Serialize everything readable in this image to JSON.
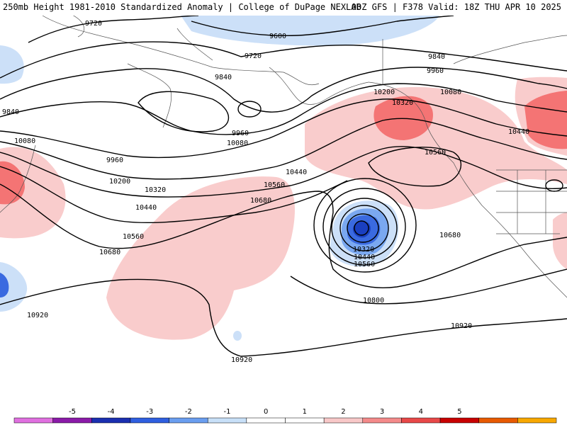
{
  "header": {
    "left": "250mb Height 1981-2010 Standardized Anomaly | College of DuPage NEXLAB",
    "right": "00Z GFS | F378 Valid: 18Z THU APR 10 2025"
  },
  "contours": [
    {
      "value": "9720",
      "label": "9720"
    },
    {
      "value": "9600",
      "label": "9600"
    },
    {
      "value": "9720b",
      "label": "9720"
    },
    {
      "value": "9840",
      "label": "9840"
    },
    {
      "value": "9840b",
      "label": "9840"
    },
    {
      "value": "9840c",
      "label": "9840"
    },
    {
      "value": "9960",
      "label": "9960"
    },
    {
      "value": "9960b",
      "label": "9960"
    },
    {
      "value": "9960c",
      "label": "9960"
    },
    {
      "value": "10080",
      "label": "10080"
    },
    {
      "value": "10080b",
      "label": "10080"
    },
    {
      "value": "10080c",
      "label": "10080"
    },
    {
      "value": "10200",
      "label": "10200"
    },
    {
      "value": "10200b",
      "label": "10200"
    },
    {
      "value": "10320",
      "label": "10320"
    },
    {
      "value": "10320b",
      "label": "10320"
    },
    {
      "value": "10320c",
      "label": "10320"
    },
    {
      "value": "10440",
      "label": "10440"
    },
    {
      "value": "10440b",
      "label": "10440"
    },
    {
      "value": "10440c",
      "label": "10440"
    },
    {
      "value": "10440d",
      "label": "10440"
    },
    {
      "value": "10560",
      "label": "10560"
    },
    {
      "value": "10560b",
      "label": "10560"
    },
    {
      "value": "10560c",
      "label": "10560"
    },
    {
      "value": "10560d",
      "label": "10560"
    },
    {
      "value": "10680",
      "label": "10680"
    },
    {
      "value": "10680b",
      "label": "10680"
    },
    {
      "value": "10680c",
      "label": "10680"
    },
    {
      "value": "10800",
      "label": "10800"
    },
    {
      "value": "10920",
      "label": "10920"
    },
    {
      "value": "10920b",
      "label": "10920"
    },
    {
      "value": "10920c",
      "label": "10920"
    }
  ],
  "colorbar": {
    "ticks": [
      "-5",
      "-4",
      "-3",
      "-2",
      "-1",
      "0",
      "1",
      "2",
      "3",
      "4",
      "5"
    ],
    "colors": [
      "#e070e0",
      "#8a1aa8",
      "#1a2fb0",
      "#2f5fe0",
      "#6a9ef0",
      "#c8e0f8",
      "#ffffff",
      "#ffffff",
      "#f8c8c8",
      "#f48a8a",
      "#e84848",
      "#c80000",
      "#e85a00",
      "#f8a800"
    ]
  },
  "anomaly_colors": {
    "pos1": "#f9cccc",
    "pos2": "#f47474",
    "pos3": "#e84848",
    "neg1": "#cce0f8",
    "neg2": "#7aa8f0",
    "neg3": "#3a6ae0",
    "neg4": "#1a3fc0"
  }
}
